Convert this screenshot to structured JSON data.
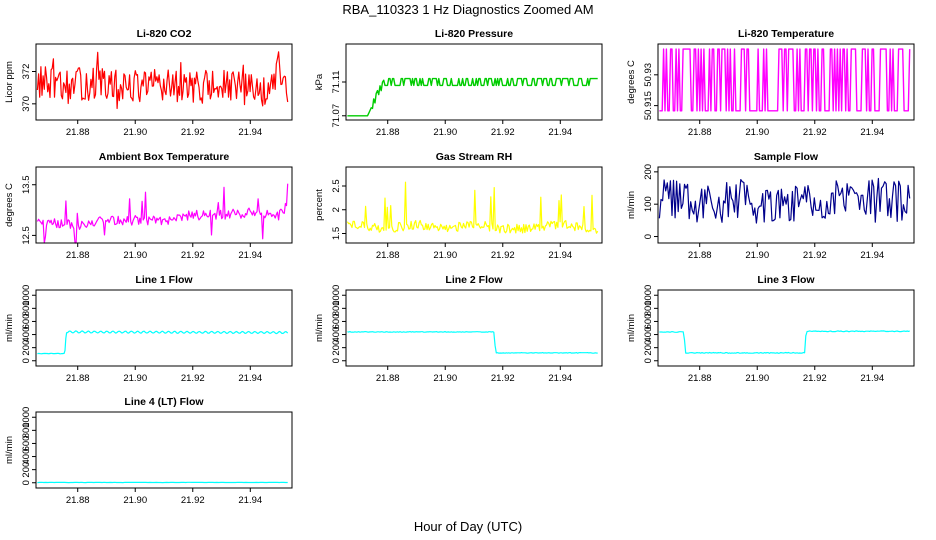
{
  "title": "RBA_110323  1 Hz Diagnostics Zoomed AM",
  "xlabel": "Hour of Day (UTC)",
  "chart_data": [
    {
      "type": "line",
      "title": "Li-820 CO2",
      "ylabel": "Licor ppm",
      "color": "#ff0000",
      "xlim": [
        21.8655,
        21.9545
      ],
      "ylim": [
        369.0,
        373.7
      ],
      "xticks": [
        21.88,
        21.9,
        21.92,
        21.94
      ],
      "yticks": [
        370,
        372
      ],
      "series": [
        {
          "name": "CO2",
          "x": [
            21.866,
            21.875,
            21.885,
            21.895,
            21.905,
            21.915,
            21.925,
            21.935,
            21.945,
            21.95,
            21.953
          ],
          "y": [
            371.4,
            371.0,
            371.3,
            371.0,
            371.2,
            371.0,
            371.1,
            371.0,
            370.8,
            372.2,
            370.6
          ]
        }
      ]
    },
    {
      "type": "line",
      "title": "Li-820 Pressure",
      "ylabel": "kPa",
      "color": "#00cc00",
      "xlim": [
        21.8655,
        21.9545
      ],
      "ylim": [
        71.065,
        71.155
      ],
      "xticks": [
        21.88,
        21.9,
        21.92,
        21.94
      ],
      "yticks": [
        71.07,
        71.11
      ],
      "series": [
        {
          "name": "Pressure",
          "x": [
            21.866,
            21.873,
            21.877,
            21.879,
            21.885,
            21.92,
            21.953
          ],
          "y": [
            71.07,
            71.07,
            71.1,
            71.11,
            71.11,
            71.11,
            71.11
          ]
        }
      ]
    },
    {
      "type": "line",
      "title": "Li-820 Temperature",
      "ylabel": "degrees C",
      "color": "#ff00ff",
      "xlim": [
        21.8655,
        21.9545
      ],
      "ylim": [
        50.908,
        50.945
      ],
      "xticks": [
        21.88,
        21.9,
        21.92,
        21.94
      ],
      "yticks": [
        50.915,
        50.93
      ],
      "series": [
        {
          "name": "Temperature",
          "x": [
            21.866,
            21.953
          ],
          "y": [
            50.9125,
            50.9425
          ]
        }
      ]
    },
    {
      "type": "line",
      "title": "Ambient Box Temperature",
      "ylabel": "degrees C",
      "color": "#ff00ff",
      "xlim": [
        21.8655,
        21.9545
      ],
      "ylim": [
        12.35,
        13.85
      ],
      "xticks": [
        21.88,
        21.9,
        21.92,
        21.94
      ],
      "yticks": [
        12.5,
        13.5
      ],
      "series": [
        {
          "name": "Box Temp",
          "x": [
            21.866,
            21.88,
            21.89,
            21.9,
            21.91,
            21.92,
            21.93,
            21.94,
            21.95,
            21.953
          ],
          "y": [
            12.8,
            12.7,
            12.8,
            12.8,
            12.8,
            12.9,
            12.9,
            12.95,
            12.9,
            13.1
          ]
        }
      ]
    },
    {
      "type": "line",
      "title": "Gas Stream RH",
      "ylabel": "percent",
      "color": "#ffff00",
      "xlim": [
        21.8655,
        21.9545
      ],
      "ylim": [
        1.3,
        2.9
      ],
      "xticks": [
        21.88,
        21.9,
        21.92,
        21.94
      ],
      "yticks": [
        1.5,
        2.0,
        2.5
      ],
      "series": [
        {
          "name": "RH",
          "x": [
            21.866,
            21.88,
            21.89,
            21.9,
            21.91,
            21.92,
            21.93,
            21.94,
            21.95,
            21.953
          ],
          "y": [
            1.7,
            1.6,
            1.7,
            1.6,
            1.7,
            1.6,
            1.6,
            1.7,
            1.6,
            1.6
          ]
        }
      ]
    },
    {
      "type": "line",
      "title": "Sample Flow",
      "ylabel": "ml/min",
      "color": "#00008b",
      "xlim": [
        21.8655,
        21.9545
      ],
      "ylim": [
        -20,
        215
      ],
      "xticks": [
        21.88,
        21.9,
        21.92,
        21.94
      ],
      "yticks": [
        0,
        100,
        200
      ],
      "series": [
        {
          "name": "Sample Flow",
          "x": [
            21.866,
            21.874,
            21.875,
            21.953
          ],
          "y": [
            108,
            108,
            112,
            112
          ]
        }
      ]
    },
    {
      "type": "line",
      "title": "Line 1 Flow",
      "ylabel": "ml/min",
      "color": "#00ffff",
      "xlim": [
        21.8655,
        21.9545
      ],
      "ylim": [
        -80,
        1080
      ],
      "xticks": [
        21.88,
        21.9,
        21.92,
        21.94
      ],
      "yticks": [
        0,
        200,
        400,
        600,
        800,
        1000
      ],
      "series": [
        {
          "name": "Line 1",
          "x": [
            21.866,
            21.8755,
            21.876,
            21.953
          ],
          "y": [
            110,
            110,
            440,
            430
          ]
        }
      ]
    },
    {
      "type": "line",
      "title": "Line 2 Flow",
      "ylabel": "ml/min",
      "color": "#00ffff",
      "xlim": [
        21.8655,
        21.9545
      ],
      "ylim": [
        -80,
        1080
      ],
      "xticks": [
        21.88,
        21.9,
        21.92,
        21.94
      ],
      "yticks": [
        0,
        200,
        400,
        600,
        800,
        1000
      ],
      "series": [
        {
          "name": "Line 2",
          "x": [
            21.866,
            21.917,
            21.9175,
            21.953
          ],
          "y": [
            440,
            440,
            120,
            120
          ]
        }
      ]
    },
    {
      "type": "line",
      "title": "Line 3 Flow",
      "ylabel": "ml/min",
      "color": "#00ffff",
      "xlim": [
        21.8655,
        21.9545
      ],
      "ylim": [
        -80,
        1080
      ],
      "xticks": [
        21.88,
        21.9,
        21.92,
        21.94
      ],
      "yticks": [
        0,
        200,
        400,
        600,
        800,
        1000
      ],
      "series": [
        {
          "name": "Line 3",
          "x": [
            21.866,
            21.8745,
            21.875,
            21.9165,
            21.917,
            21.953
          ],
          "y": [
            440,
            440,
            120,
            120,
            450,
            450
          ]
        }
      ]
    },
    {
      "type": "line",
      "title": "Line 4 (LT) Flow",
      "ylabel": "ml/min",
      "color": "#00ffff",
      "xlim": [
        21.8655,
        21.9545
      ],
      "ylim": [
        -80,
        1080
      ],
      "xticks": [
        21.88,
        21.9,
        21.92,
        21.94
      ],
      "yticks": [
        0,
        200,
        400,
        600,
        800,
        1000
      ],
      "series": [
        {
          "name": "Line 4",
          "x": [
            21.866,
            21.953
          ],
          "y": [
            5,
            5
          ]
        }
      ]
    }
  ]
}
